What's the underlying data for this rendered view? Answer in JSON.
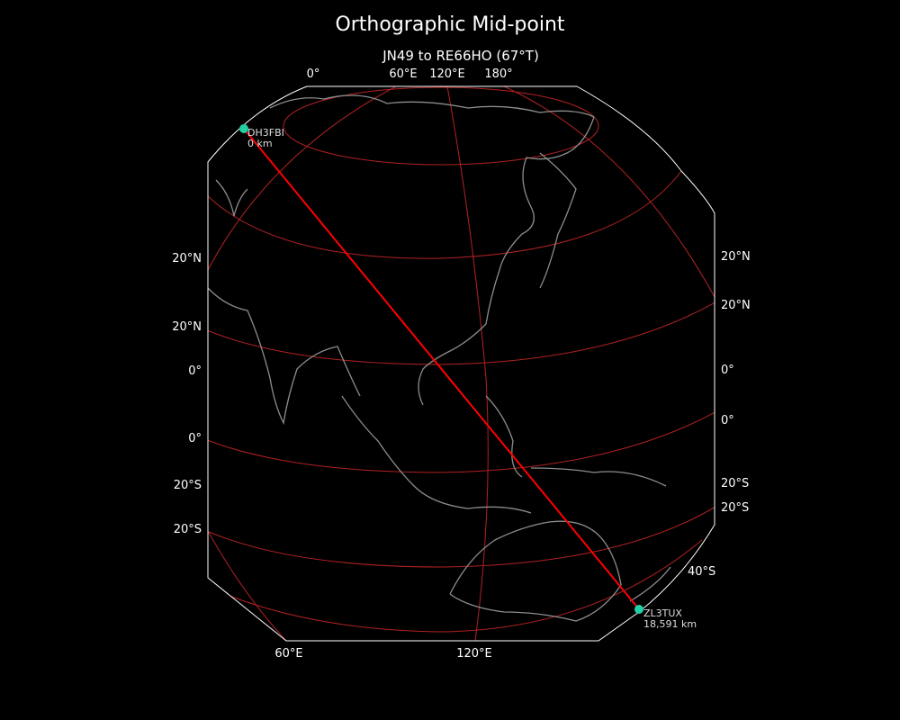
{
  "title": "Orthographic Mid-point",
  "subtitle": "JN49 to RE66HO (67°T)",
  "colors": {
    "background": "#000000",
    "path": "#ff0000",
    "graticule": "#b22222",
    "coastline": "#8c8c8c",
    "marker": "#1fd1a5",
    "boundary": "#ffffff"
  },
  "top_labels": [
    "0°",
    "60°E",
    "120°E",
    "180°"
  ],
  "bottom_labels": [
    "60°E",
    "120°E"
  ],
  "left_labels": [
    "20°N",
    "20°N",
    "0°",
    "0°",
    "20°S",
    "20°S"
  ],
  "right_labels": [
    "20°N",
    "20°N",
    "0°",
    "0°",
    "20°S",
    "20°S",
    "40°S"
  ],
  "markers": [
    {
      "call": "DH3FBI",
      "distance": "0 km"
    },
    {
      "call": "ZL3TUX",
      "distance": "18,591 km"
    }
  ]
}
